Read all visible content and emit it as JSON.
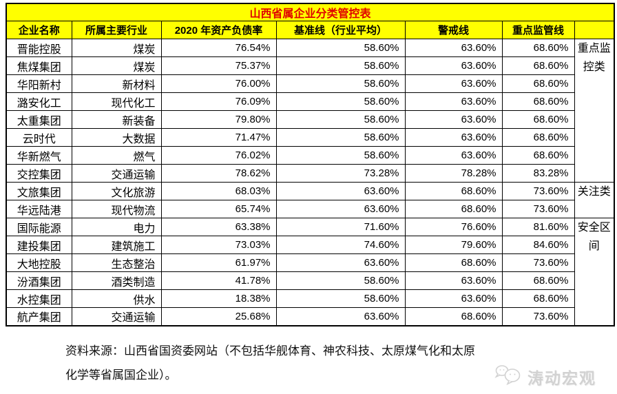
{
  "title": "山西省属企业分类管控表",
  "table": {
    "columns": [
      "企业名称",
      "所属主要行业",
      "2020 年资产负债率",
      "基准线（行业平均）",
      "警戒线",
      "重点监管线",
      ""
    ],
    "rows": [
      {
        "name": "晋能控股",
        "industry": "煤炭",
        "ratio": "76.54%",
        "baseline": "58.60%",
        "warning": "63.60%",
        "supervision": "68.60%"
      },
      {
        "name": "焦煤集团",
        "industry": "煤炭",
        "ratio": "75.37%",
        "baseline": "58.60%",
        "warning": "63.60%",
        "supervision": "68.60%"
      },
      {
        "name": "华阳新村",
        "industry": "新材料",
        "ratio": "76.00%",
        "baseline": "58.60%",
        "warning": "63.60%",
        "supervision": "68.60%"
      },
      {
        "name": "潞安化工",
        "industry": "现代化工",
        "ratio": "76.09%",
        "baseline": "58.60%",
        "warning": "63.60%",
        "supervision": "68.60%"
      },
      {
        "name": "太重集团",
        "industry": "新装备",
        "ratio": "79.80%",
        "baseline": "58.60%",
        "warning": "63.60%",
        "supervision": "68.60%"
      },
      {
        "name": "云时代",
        "industry": "大数据",
        "ratio": "71.47%",
        "baseline": "58.60%",
        "warning": "63.60%",
        "supervision": "68.60%"
      },
      {
        "name": "华新燃气",
        "industry": "燃气",
        "ratio": "76.02%",
        "baseline": "58.60%",
        "warning": "63.60%",
        "supervision": "68.60%"
      },
      {
        "name": "交控集团",
        "industry": "交通运输",
        "ratio": "78.62%",
        "baseline": "73.28%",
        "warning": "78.28%",
        "supervision": "83.28%"
      },
      {
        "name": "文旅集团",
        "industry": "文化旅游",
        "ratio": "68.03%",
        "baseline": "63.60%",
        "warning": "68.60%",
        "supervision": "73.60%"
      },
      {
        "name": "华远陆港",
        "industry": "现代物流",
        "ratio": "65.74%",
        "baseline": "63.60%",
        "warning": "68.60%",
        "supervision": "73.60%"
      },
      {
        "name": "国际能源",
        "industry": "电力",
        "ratio": "63.38%",
        "baseline": "71.60%",
        "warning": "76.60%",
        "supervision": "81.60%"
      },
      {
        "name": "建投集团",
        "industry": "建筑施工",
        "ratio": "73.03%",
        "baseline": "74.60%",
        "warning": "79.60%",
        "supervision": "84.60%"
      },
      {
        "name": "大地控股",
        "industry": "生态整治",
        "ratio": "61.97%",
        "baseline": "63.60%",
        "warning": "68.60%",
        "supervision": "73.60%"
      },
      {
        "name": "汾酒集团",
        "industry": "酒类制造",
        "ratio": "41.78%",
        "baseline": "58.60%",
        "warning": "63.60%",
        "supervision": "68.60%"
      },
      {
        "name": "水控集团",
        "industry": "供水",
        "ratio": "18.38%",
        "baseline": "58.60%",
        "warning": "63.60%",
        "supervision": "68.60%"
      },
      {
        "name": "航产集团",
        "industry": "交通运输",
        "ratio": "25.68%",
        "baseline": "63.60%",
        "warning": "68.60%",
        "supervision": "73.60%"
      }
    ],
    "categories": [
      {
        "label": "重点监控类",
        "start": 0,
        "span": 8
      },
      {
        "label": "关注类",
        "start": 8,
        "span": 2
      },
      {
        "label": "安全区间",
        "start": 10,
        "span": 6
      }
    ]
  },
  "footer": {
    "source_line1": "资料来源：山西省国资委网站（不包括华舰体育、神农科技、太原煤气化和太原",
    "source_line2": "化学等省属国企业）。"
  },
  "watermark": {
    "label": "涛动宏观",
    "icon": "chat-bubbles-icon"
  },
  "colors": {
    "header_bg": "#ffff00",
    "title_text": "#e00000",
    "border": "#000000",
    "watermark": "#d2d2d2"
  }
}
